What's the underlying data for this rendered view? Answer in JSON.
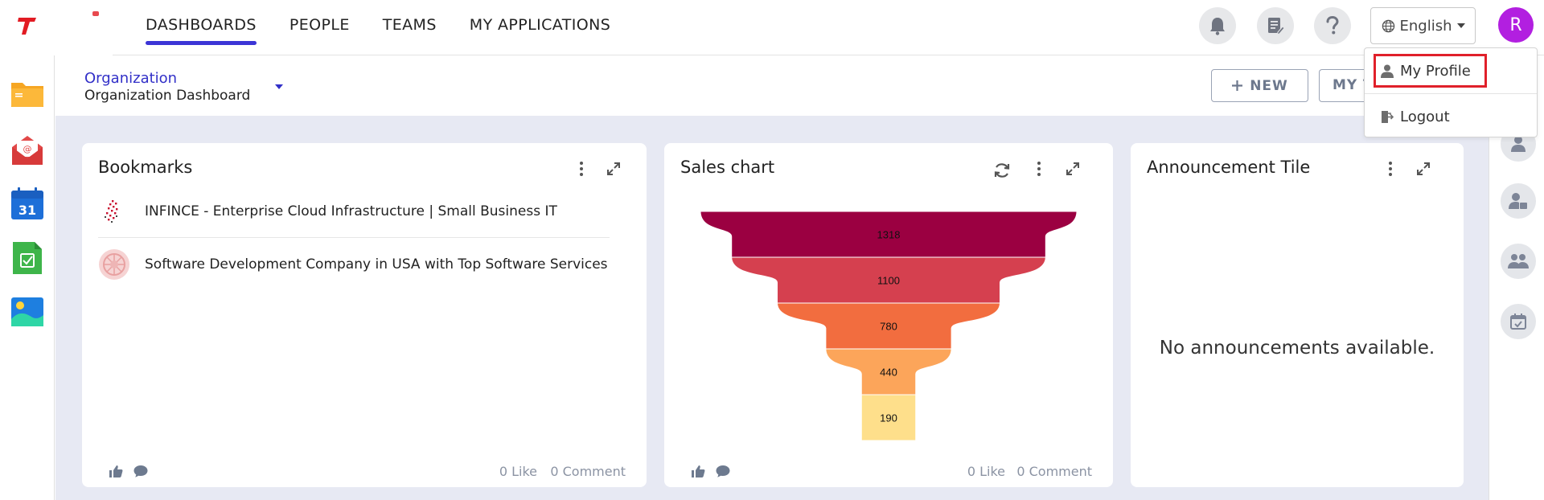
{
  "nav": {
    "items": [
      {
        "label": "DASHBOARDS",
        "active": true
      },
      {
        "label": "PEOPLE",
        "active": false
      },
      {
        "label": "TEAMS",
        "active": false
      },
      {
        "label": "MY APPLICATIONS",
        "active": false
      }
    ]
  },
  "header": {
    "icons": [
      "bell-icon",
      "notes-icon",
      "help-icon"
    ],
    "language": "English",
    "avatar_initial": "R"
  },
  "profile_menu": {
    "items": [
      {
        "label": "My Profile",
        "icon": "user-icon",
        "highlighted": true
      },
      {
        "label": "Logout",
        "icon": "logout-icon",
        "highlighted": false
      }
    ]
  },
  "subheader": {
    "org_link": "Organization",
    "dashboard_name": "Organization Dashboard",
    "new_button": "NEW",
    "my_button": "MY T"
  },
  "left_apps": [
    "folder-app-icon",
    "mail-app-icon",
    "calendar-app-icon",
    "tasks-app-icon",
    "gallery-app-icon"
  ],
  "calendar_day": "31",
  "right_rail_icons": [
    "person-icon",
    "person-settings-icon",
    "group-icon",
    "calendar-check-icon"
  ],
  "cards": {
    "bookmarks": {
      "title": "Bookmarks",
      "items": [
        "INFINCE - Enterprise Cloud Infrastructure | Small Business IT",
        "Software Development Company in USA with Top Software Services"
      ],
      "likes": "0 Like",
      "comments": "0 Comment"
    },
    "sales": {
      "title": "Sales chart",
      "likes": "0 Like",
      "comments": "0 Comment"
    },
    "announcement": {
      "title": "Announcement Tile",
      "empty_message": "No announcements available."
    }
  },
  "colors": {
    "accent": "#3c35d6",
    "highlight_border": "#e0202a",
    "avatar": "#b21fe0",
    "content_bg": "#e7e9f3"
  },
  "chart_data": {
    "type": "funnel",
    "values": [
      1318,
      1100,
      780,
      440,
      190
    ],
    "colors": [
      "#9b0041",
      "#d5404f",
      "#f26d3f",
      "#fca55a",
      "#fedf8b"
    ],
    "labels": [
      "1318",
      "1100",
      "780",
      "440",
      "190"
    ]
  }
}
